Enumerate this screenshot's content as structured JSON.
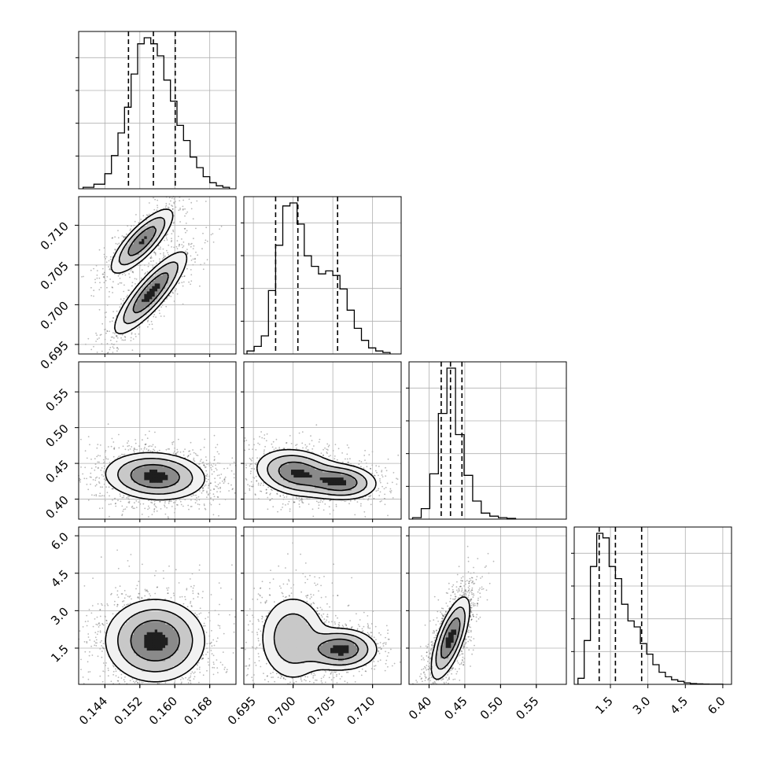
{
  "chart_data": {
    "type": "corner",
    "parameters": [
      {
        "ticks": [
          0.144,
          0.152,
          0.16,
          0.168
        ],
        "tick_labels": [
          "0.144",
          "0.152",
          "0.160",
          "0.168"
        ],
        "range": [
          0.138,
          0.174
        ]
      },
      {
        "ticks": [
          0.695,
          0.7,
          0.705,
          0.71
        ],
        "tick_labels": [
          "0.695",
          "0.700",
          "0.705",
          "0.710"
        ],
        "range": [
          0.6938,
          0.7136
        ]
      },
      {
        "ticks": [
          0.4,
          0.45,
          0.5,
          0.55
        ],
        "tick_labels": [
          "0.40",
          "0.45",
          "0.50",
          "0.55"
        ],
        "range": [
          0.372,
          0.592
        ]
      },
      {
        "ticks": [
          1.5,
          3.0,
          4.5,
          6.0
        ],
        "tick_labels": [
          "1.5",
          "3.0",
          "4.5",
          "6.0"
        ],
        "range": [
          0.05,
          6.35
        ]
      }
    ],
    "histograms": [
      {
        "param": 0,
        "bins": [
          0.139,
          0.1415,
          0.144,
          0.1455,
          0.147,
          0.1485,
          0.15,
          0.1515,
          0.153,
          0.1545,
          0.156,
          0.1575,
          0.159,
          0.1605,
          0.162,
          0.1635,
          0.165,
          0.1665,
          0.168,
          0.1695,
          0.171,
          0.1725
        ],
        "heights": [
          0.01,
          0.03,
          0.1,
          0.22,
          0.37,
          0.54,
          0.76,
          0.96,
          1.0,
          0.96,
          0.88,
          0.72,
          0.58,
          0.42,
          0.32,
          0.21,
          0.14,
          0.08,
          0.04,
          0.02,
          0.01
        ],
        "quantiles": [
          0.1494,
          0.1551,
          0.1601
        ]
      },
      {
        "param": 1,
        "bins": [
          0.6942,
          0.6951,
          0.696,
          0.6969,
          0.6978,
          0.6987,
          0.6996,
          0.7005,
          0.7014,
          0.7023,
          0.7032,
          0.7041,
          0.705,
          0.7059,
          0.7068,
          0.7077,
          0.7086,
          0.7095,
          0.7104,
          0.7113,
          0.7122
        ],
        "heights": [
          0.02,
          0.05,
          0.12,
          0.42,
          0.72,
          0.98,
          1.0,
          0.86,
          0.65,
          0.58,
          0.53,
          0.55,
          0.52,
          0.43,
          0.29,
          0.17,
          0.09,
          0.04,
          0.02,
          0.01
        ],
        "quantiles": [
          0.6978,
          0.7006,
          0.7056
        ]
      },
      {
        "param": 2,
        "bins": [
          0.377,
          0.389,
          0.401,
          0.413,
          0.425,
          0.437,
          0.449,
          0.461,
          0.473,
          0.485,
          0.497,
          0.509,
          0.521
        ],
        "heights": [
          0.01,
          0.07,
          0.3,
          0.7,
          1.0,
          0.56,
          0.29,
          0.12,
          0.04,
          0.02,
          0.01,
          0.005
        ],
        "quantiles": [
          0.417,
          0.43,
          0.446
        ]
      },
      {
        "param": 3,
        "bins": [
          0.2,
          0.45,
          0.7,
          0.95,
          1.2,
          1.45,
          1.7,
          1.95,
          2.2,
          2.45,
          2.7,
          2.95,
          3.2,
          3.45,
          3.7,
          3.95,
          4.2,
          4.45,
          4.7,
          4.95,
          5.2,
          5.45,
          5.7,
          6.0
        ],
        "heights": [
          0.04,
          0.29,
          0.78,
          1.0,
          0.97,
          0.78,
          0.7,
          0.53,
          0.42,
          0.38,
          0.27,
          0.2,
          0.13,
          0.08,
          0.05,
          0.03,
          0.02,
          0.01,
          0.005,
          0.003,
          0.002,
          0.001,
          0.001
        ],
        "quantiles": [
          1.05,
          1.7,
          2.75
        ]
      }
    ],
    "pairs": [
      {
        "x": 0,
        "y": 1,
        "modes": [
          {
            "mx": 0.1545,
            "my": 0.7015,
            "sx": 0.004,
            "sy": 0.0025,
            "rho": 0.85,
            "w": 0.58
          },
          {
            "mx": 0.1525,
            "my": 0.708,
            "sx": 0.0035,
            "sy": 0.002,
            "rho": 0.8,
            "w": 0.42
          }
        ]
      },
      {
        "x": 0,
        "y": 2,
        "modes": [
          {
            "mx": 0.1555,
            "my": 0.432,
            "sx": 0.0055,
            "sy": 0.016,
            "rho": -0.1,
            "w": 1.0
          }
        ]
      },
      {
        "x": 1,
        "y": 2,
        "modes": [
          {
            "mx": 0.7005,
            "my": 0.437,
            "sx": 0.0025,
            "sy": 0.016,
            "rho": -0.2,
            "w": 0.6
          },
          {
            "mx": 0.706,
            "my": 0.424,
            "sx": 0.0022,
            "sy": 0.012,
            "rho": -0.1,
            "w": 0.4
          }
        ]
      },
      {
        "x": 0,
        "y": 3,
        "modes": [
          {
            "mx": 0.1555,
            "my": 1.8,
            "sx": 0.0055,
            "sy": 0.8,
            "rho": 0.0,
            "w": 1.0
          }
        ]
      },
      {
        "x": 1,
        "y": 3,
        "modes": [
          {
            "mx": 0.7,
            "my": 1.9,
            "sx": 0.0022,
            "sy": 0.9,
            "rho": 0.0,
            "w": 0.55
          },
          {
            "mx": 0.706,
            "my": 1.45,
            "sx": 0.0022,
            "sy": 0.4,
            "rho": 0.0,
            "w": 0.45
          }
        ]
      },
      {
        "x": 2,
        "y": 3,
        "modes": [
          {
            "mx": 0.43,
            "my": 1.9,
            "sx": 0.013,
            "sy": 0.8,
            "rho": 0.7,
            "w": 1.0
          }
        ]
      }
    ],
    "grid": true
  }
}
